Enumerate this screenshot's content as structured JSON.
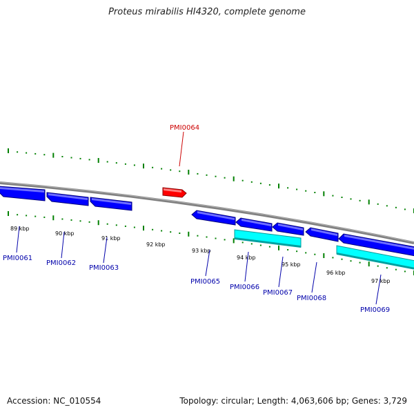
{
  "title": "Proteus mirabilis HI4320, complete genome",
  "footer": {
    "accession": "Accession: NC_010554",
    "info": "Topology: circular; Length: 4,063,606 bp; Genes: 3,729"
  },
  "colors": {
    "backbone": "#808080",
    "forward_gene": "#ff0000",
    "reverse_gene": "#0000ff",
    "reverse_gene_alt": "#00ffff",
    "tick": "#008000",
    "label_forward": "#cc0000",
    "label_reverse": "#0000aa"
  },
  "ticks": [
    {
      "label": "89 kbp"
    },
    {
      "label": "90 kbp"
    },
    {
      "label": "91 kbp"
    },
    {
      "label": "92 kbp"
    },
    {
      "label": "93 kbp"
    },
    {
      "label": "94 kbp"
    },
    {
      "label": "95 kbp"
    },
    {
      "label": "96 kbp"
    },
    {
      "label": "97 kbp"
    }
  ],
  "genes": [
    {
      "name": "PMI0061",
      "strand": "-"
    },
    {
      "name": "PMI0062",
      "strand": "-"
    },
    {
      "name": "PMI0063",
      "strand": "-"
    },
    {
      "name": "PMI0064",
      "strand": "+"
    },
    {
      "name": "PMI0065",
      "strand": "-"
    },
    {
      "name": "PMI0066",
      "strand": "-"
    },
    {
      "name": "PMI0067",
      "strand": "-"
    },
    {
      "name": "PMI0068",
      "strand": "-"
    },
    {
      "name": "PMI0069",
      "strand": "-"
    }
  ]
}
